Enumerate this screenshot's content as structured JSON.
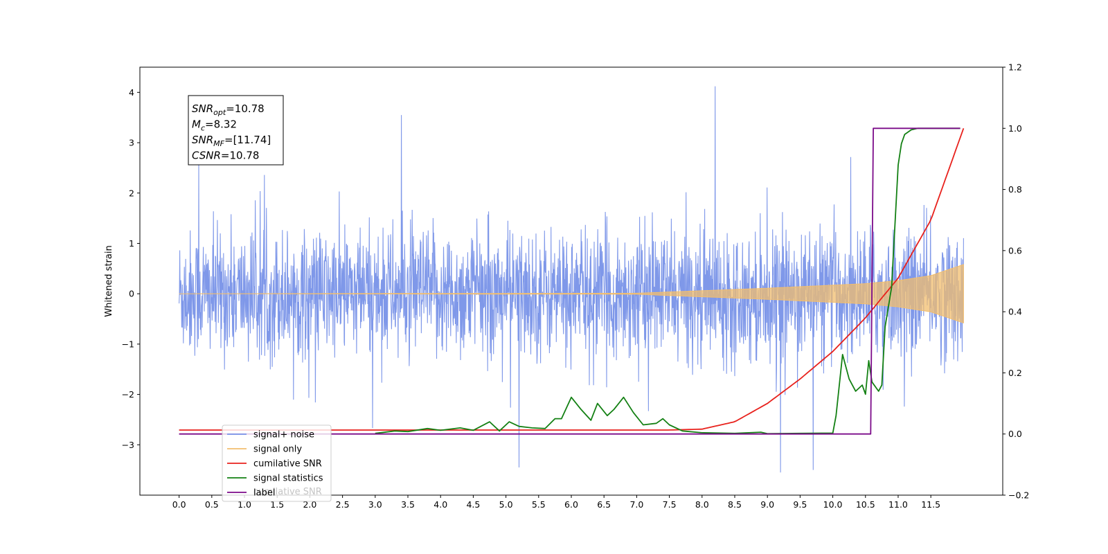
{
  "chart_data": {
    "type": "line",
    "title": "",
    "xlabel": "",
    "ylabel": "Whitened strain",
    "y2label": "",
    "xlim": [
      -0.6,
      12.6
    ],
    "ylim": [
      -4.0,
      4.5
    ],
    "y2lim": [
      -0.2,
      1.2
    ],
    "x_ticks": [
      0.0,
      0.5,
      1.0,
      1.5,
      2.0,
      2.5,
      3.0,
      3.5,
      4.0,
      4.5,
      5.0,
      5.5,
      6.0,
      6.5,
      7.0,
      7.5,
      8.0,
      8.5,
      9.0,
      9.5,
      10.0,
      10.5,
      11.0,
      11.5
    ],
    "x_tick_labels": [
      "0.0",
      "0.5",
      "1.0",
      "1.5",
      "2.0",
      "2.5",
      "3.0",
      "3.5",
      "4.0",
      "4.5",
      "5.0",
      "5.5",
      "6.0",
      "6.5",
      "7.0",
      "7.5",
      "8.0",
      "8.5",
      "9.0",
      "9.5",
      "10.0",
      "10.5",
      "11.0",
      "11.5"
    ],
    "y_ticks": [
      -3,
      -2,
      -1,
      0,
      1,
      2,
      3,
      4
    ],
    "y_tick_labels": [
      "−3",
      "−2",
      "−1",
      "0",
      "1",
      "2",
      "3",
      "4"
    ],
    "y2_ticks": [
      -0.2,
      0.0,
      0.2,
      0.4,
      0.6,
      0.8,
      1.0,
      1.2
    ],
    "y2_tick_labels": [
      "−0.2",
      "0.0",
      "0.2",
      "0.4",
      "0.6",
      "0.8",
      "1.0",
      "1.2"
    ],
    "grid": false,
    "legend_position": "lower-left",
    "series": [
      {
        "name": "signal+ noise",
        "color": "#7892e8",
        "axis": "left",
        "description_kind": "noise",
        "x_range": [
          0.0,
          12.0
        ],
        "approx_envelope": [
          -2.0,
          2.0
        ],
        "noted_peaks": [
          {
            "x": 0.3,
            "y": 2.6
          },
          {
            "x": 3.4,
            "y": 3.55
          },
          {
            "x": 8.2,
            "y": 4.12
          },
          {
            "x": 5.2,
            "y": -3.45
          },
          {
            "x": 9.2,
            "y": -3.55
          },
          {
            "x": 9.7,
            "y": -3.5
          }
        ]
      },
      {
        "name": "signal only",
        "color": "#f2be6e",
        "axis": "left",
        "x": [
          0.0,
          7.0,
          8.0,
          9.0,
          10.0,
          10.5,
          11.0,
          11.5,
          12.0
        ],
        "amplitude": [
          0.0,
          0.01,
          0.06,
          0.11,
          0.17,
          0.2,
          0.26,
          0.36,
          0.58
        ]
      },
      {
        "name": "cumilative SNR",
        "color": "#e8211c",
        "axis": "right",
        "x": [
          0.0,
          7.5,
          8.0,
          8.5,
          9.0,
          9.5,
          10.0,
          10.5,
          11.0,
          11.5,
          12.0
        ],
        "y": [
          0.013,
          0.013,
          0.016,
          0.04,
          0.1,
          0.18,
          0.27,
          0.38,
          0.51,
          0.7,
          1.0
        ]
      },
      {
        "name": "signal statistics",
        "color": "#138013",
        "axis": "right",
        "x": [
          3.0,
          3.3,
          3.5,
          3.8,
          4.0,
          4.3,
          4.5,
          4.75,
          4.9,
          5.05,
          5.2,
          5.4,
          5.6,
          5.75,
          5.85,
          6.0,
          6.15,
          6.3,
          6.4,
          6.55,
          6.65,
          6.8,
          6.95,
          7.1,
          7.3,
          7.4,
          7.5,
          7.7,
          8.0,
          8.5,
          8.9,
          9.0,
          9.5,
          10.0,
          10.05,
          10.15,
          10.25,
          10.35,
          10.45,
          10.5,
          10.55,
          10.6,
          10.7,
          10.75,
          10.8,
          10.9,
          11.0,
          11.05,
          11.1,
          11.2,
          11.3,
          11.5,
          11.95
        ],
        "y": [
          0.002,
          0.01,
          0.008,
          0.018,
          0.012,
          0.02,
          0.012,
          0.04,
          0.01,
          0.04,
          0.025,
          0.02,
          0.018,
          0.05,
          0.05,
          0.12,
          0.08,
          0.045,
          0.1,
          0.06,
          0.08,
          0.12,
          0.07,
          0.03,
          0.035,
          0.05,
          0.03,
          0.01,
          0.004,
          0.002,
          0.006,
          0.001,
          0.002,
          0.003,
          0.06,
          0.26,
          0.18,
          0.14,
          0.16,
          0.13,
          0.24,
          0.17,
          0.14,
          0.16,
          0.35,
          0.48,
          0.88,
          0.95,
          0.98,
          0.995,
          1.0,
          1.0,
          1.0
        ]
      },
      {
        "name": "label",
        "color": "#7b0a89",
        "axis": "right",
        "x": [
          0.0,
          10.58,
          10.6,
          10.62,
          11.95
        ],
        "y": [
          0.0,
          0.0,
          0.5,
          1.0,
          1.0
        ]
      }
    ],
    "annotation": {
      "lines": [
        {
          "main": "SNR",
          "sub": "opt",
          "rest": "=10.78"
        },
        {
          "main": "M",
          "sub": "c",
          "rest": "=8.32"
        },
        {
          "main": "SNR",
          "sub": "MF",
          "rest": "=[11.74]"
        },
        {
          "main": "CSNR",
          "sub": "",
          "rest": "=10.78"
        }
      ]
    },
    "legend_entries": [
      "signal+ noise",
      "signal only",
      "cumilative SNR",
      "signal statistics",
      "label"
    ],
    "legend_ghost_text": "cumilative SNR"
  }
}
